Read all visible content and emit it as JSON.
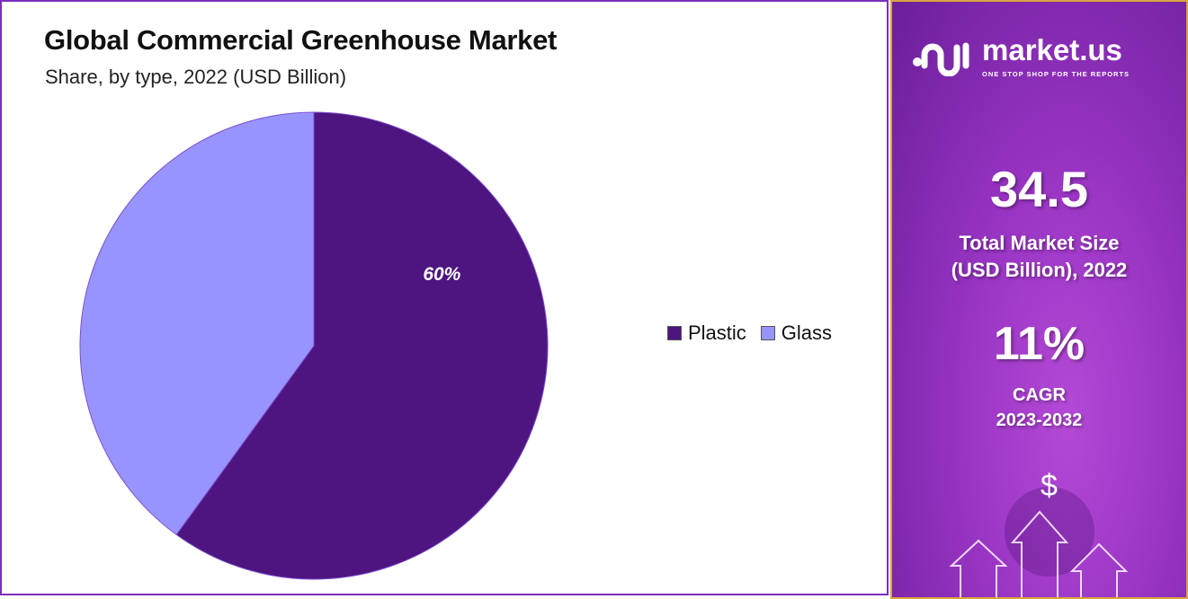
{
  "chart_data": {
    "type": "pie",
    "title": "Global Commercial Greenhouse Market",
    "subtitle": "Share, by type, 2022 (USD Billion)",
    "categories": [
      "Plastic",
      "Glass"
    ],
    "values": [
      60,
      40
    ],
    "data_labels": [
      "60%",
      ""
    ],
    "colors": [
      "#4e1580",
      "#9894fe"
    ],
    "legend_position": "right"
  },
  "sidebar": {
    "brand": "market.us",
    "tagline": "ONE STOP SHOP FOR THE REPORTS",
    "market_size_value": "34.5",
    "market_size_label_1": "Total Market Size",
    "market_size_label_2": "(USD Billion), 2022",
    "cagr_value": "11%",
    "cagr_label_1": "CAGR",
    "cagr_label_2": "2023-2032",
    "dollar_symbol": "$"
  }
}
